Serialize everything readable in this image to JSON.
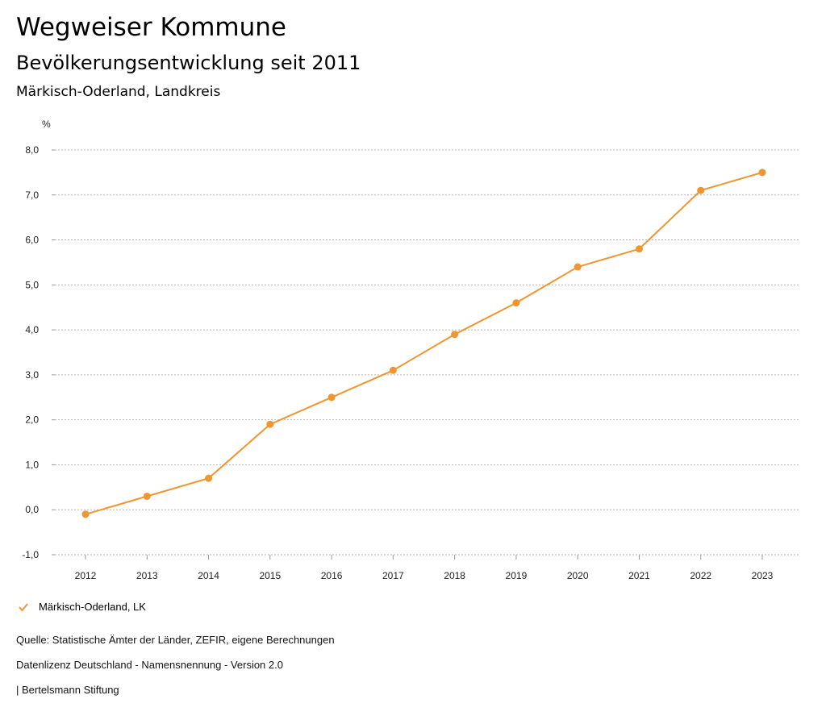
{
  "header": {
    "title": "Wegweiser Kommune",
    "subtitle": "Bevölkerungsentwicklung seit 2011",
    "region": "Märkisch-Oderland, Landkreis"
  },
  "chart_data": {
    "type": "line",
    "title": "Bevölkerungsentwicklung seit 2011",
    "ylabel": "%",
    "xlabel": "",
    "categories": [
      "2012",
      "2013",
      "2014",
      "2015",
      "2016",
      "2017",
      "2018",
      "2019",
      "2020",
      "2021",
      "2022",
      "2023"
    ],
    "series": [
      {
        "name": "Märkisch-Oderland, LK",
        "color": "#ef9631",
        "values": [
          -0.1,
          0.3,
          0.7,
          1.9,
          2.5,
          3.1,
          3.9,
          4.6,
          5.4,
          5.8,
          7.1,
          7.5
        ]
      }
    ],
    "ylim": [
      -1.0,
      8.0
    ],
    "yticks": [
      "8,0",
      "7,0",
      "6,0",
      "5,0",
      "4,0",
      "3,0",
      "2,0",
      "1,0",
      "0,0",
      "-1,0"
    ],
    "grid": true,
    "legend": "bottom-left"
  },
  "legend": {
    "label": "Märkisch-Oderland, LK"
  },
  "footer": {
    "source": "Quelle: Statistische Ämter der Länder, ZEFIR, eigene Berechnungen",
    "license": "Datenlizenz Deutschland - Namensnennung - Version 2.0",
    "publisher": "| Bertelsmann Stiftung"
  }
}
